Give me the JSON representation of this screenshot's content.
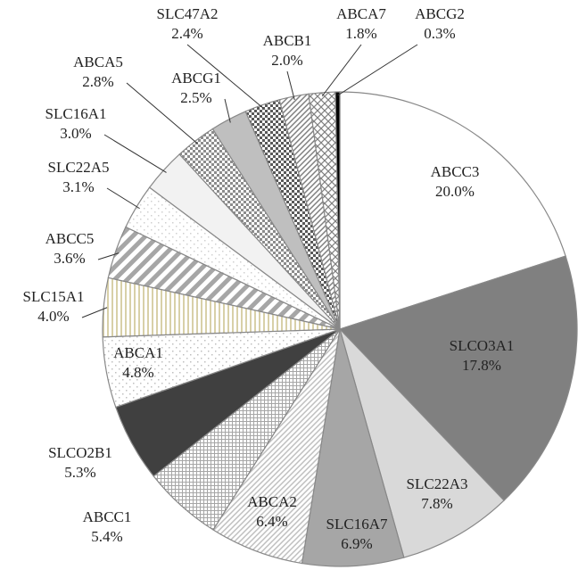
{
  "chart_data": {
    "type": "pie",
    "categories": [
      "ABCC3",
      "SLCO3A1",
      "SLC22A3",
      "SLC16A7",
      "ABCA2",
      "ABCC1",
      "SLCO2B1",
      "ABCA1",
      "SLC15A1",
      "ABCC5",
      "SLC22A5",
      "SLC16A1",
      "ABCA5",
      "ABCG1",
      "SLC47A2",
      "ABCB1",
      "ABCA7",
      "ABCG2"
    ],
    "values": [
      20.0,
      17.8,
      7.8,
      6.9,
      6.4,
      5.4,
      5.3,
      4.8,
      4.0,
      3.6,
      3.1,
      3.0,
      2.8,
      2.5,
      2.4,
      2.0,
      1.8,
      0.3
    ],
    "value_labels": [
      "20.0%",
      "17.8%",
      "7.8%",
      "6.9%",
      "6.4%",
      "5.4%",
      "5.3%",
      "4.8%",
      "4.0%",
      "3.6%",
      "3.1%",
      "3.0%",
      "2.8%",
      "2.5%",
      "2.4%",
      "2.0%",
      "1.8%",
      "0.3%"
    ],
    "colors": [
      "#ffffff",
      "#808080",
      "#d9d9d9",
      "#a6a6a6",
      "#bfbfbf",
      "#a6a6a6",
      "#404040",
      "#bfbfbf",
      "#d8d0a8",
      "#a6a6a6",
      "#d0d0d0",
      "#f2f2f2",
      "#8c8c8c",
      "#bfbfbf",
      "#595959",
      "#7f7f7f",
      "#7f7f7f",
      "#000000"
    ]
  }
}
